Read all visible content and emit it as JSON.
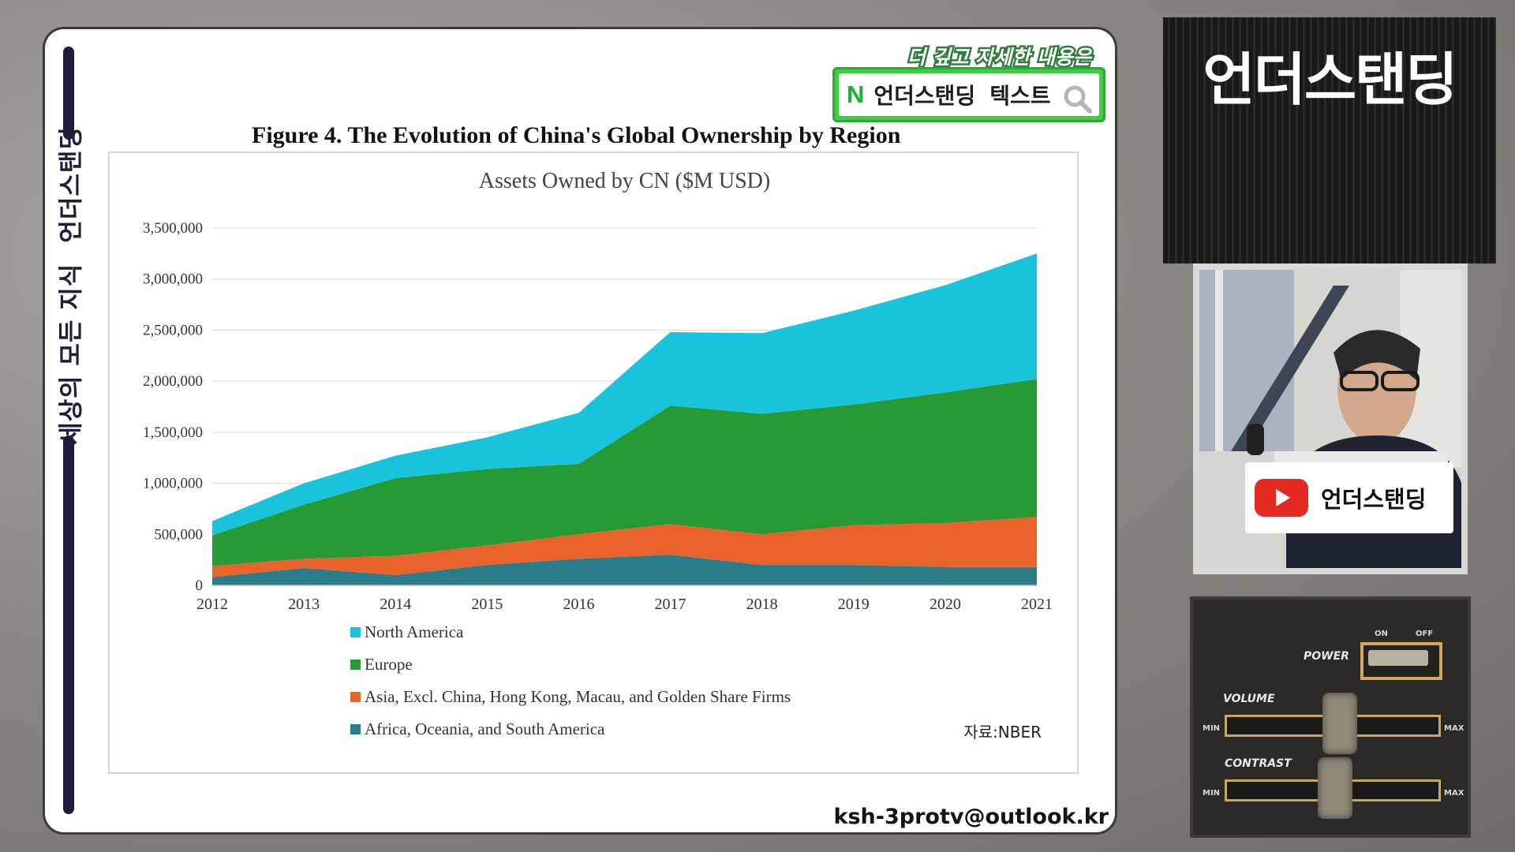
{
  "sidebar_text": {
    "part1": "세상의 모든 지식",
    "part2": "언더스탠딩"
  },
  "promo": {
    "headline": "더 깊고 자세한 내용은",
    "logo": "N",
    "label": "언더스탠딩",
    "label2": "텍스트",
    "icon": "search-icon"
  },
  "figure_title": "Figure 4. The Evolution of China's Global Ownership by Region",
  "source_note": "자료:NBER",
  "email": "ksh-3protv@outlook.kr",
  "right_panel": {
    "brand_title": "언더스탠딩",
    "badge_name": "언더스탠딩",
    "controls": {
      "power": "POWER",
      "on": "ON",
      "off": "OFF",
      "volume": "VOLUME",
      "contrast": "CONTRAST",
      "min": "MIN",
      "max": "MAX"
    }
  },
  "chart_data": {
    "type": "area",
    "stacked": true,
    "title": "Assets Owned by CN ($M USD)",
    "x": [
      2012,
      2013,
      2014,
      2015,
      2016,
      2017,
      2018,
      2019,
      2020,
      2021
    ],
    "ylim": [
      0,
      3500000
    ],
    "yticks": [
      0,
      500000,
      1000000,
      1500000,
      2000000,
      2500000,
      3000000,
      3500000
    ],
    "ytick_labels": [
      "0",
      "500,000",
      "1,000,000",
      "1,500,000",
      "2,000,000",
      "2,500,000",
      "3,000,000",
      "3,500,000"
    ],
    "grid": true,
    "legend_position": "bottom",
    "series": [
      {
        "name": "Africa, Oceania, and South America",
        "color": "#2b7c8a",
        "values": [
          80000,
          170000,
          100000,
          200000,
          260000,
          300000,
          200000,
          200000,
          180000,
          180000
        ]
      },
      {
        "name": "Asia, Excl. China, Hong Kong, Macau, and Golden Share Firms",
        "color": "#e8622a",
        "values": [
          110000,
          90000,
          190000,
          190000,
          240000,
          300000,
          300000,
          390000,
          430000,
          490000
        ]
      },
      {
        "name": "Europe",
        "color": "#269a34",
        "values": [
          300000,
          530000,
          760000,
          750000,
          690000,
          1160000,
          1180000,
          1180000,
          1280000,
          1350000
        ]
      },
      {
        "name": "North America",
        "color": "#19c3dc",
        "values": [
          140000,
          210000,
          220000,
          310000,
          500000,
          720000,
          790000,
          920000,
          1050000,
          1230000
        ]
      }
    ]
  }
}
